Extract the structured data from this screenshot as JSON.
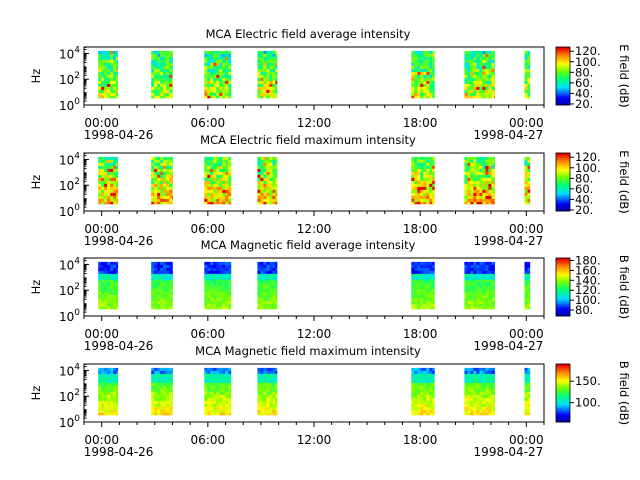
{
  "chart_data": [
    {
      "type": "heatmap",
      "title": "MCA  Electric field average intensity",
      "ylabel": "Hz",
      "yscale": "log",
      "ylim_exp": [
        0,
        4.5
      ],
      "yticks": [
        {
          "base": "10",
          "exp": "0"
        },
        {
          "base": "10",
          "exp": "2"
        },
        {
          "base": "10",
          "exp": "4"
        }
      ],
      "xlim_hours": [
        -1,
        25
      ],
      "xticks": [
        {
          "hour": 0,
          "label": "00:00"
        },
        {
          "hour": 6,
          "label": "06:00"
        },
        {
          "hour": 12,
          "label": "12:00"
        },
        {
          "hour": 18,
          "label": "18:00"
        },
        {
          "hour": 24,
          "label": "00:00"
        }
      ],
      "date_start": "1998-04-26",
      "date_end": "1998-04-27",
      "colorbar": {
        "label": "E field (dB)",
        "range": [
          18,
          128
        ],
        "ticks": [
          "20.",
          "40.",
          "60.",
          "80.",
          "100.",
          "120."
        ],
        "tick_values": [
          20,
          40,
          60,
          80,
          100,
          120
        ]
      },
      "data_segments_hours": [
        [
          -0.2,
          0.9
        ],
        [
          2.8,
          4.0
        ],
        [
          5.8,
          7.3
        ],
        [
          8.8,
          9.9
        ],
        [
          17.5,
          18.8
        ],
        [
          20.5,
          22.2
        ],
        [
          23.9,
          24.2
        ]
      ],
      "pattern": "e-avg"
    },
    {
      "type": "heatmap",
      "title": "MCA  Electric field maximum intensity",
      "ylabel": "Hz",
      "yscale": "log",
      "ylim_exp": [
        0,
        4.5
      ],
      "yticks": [
        {
          "base": "10",
          "exp": "0"
        },
        {
          "base": "10",
          "exp": "2"
        },
        {
          "base": "10",
          "exp": "4"
        }
      ],
      "xlim_hours": [
        -1,
        25
      ],
      "xticks": [
        {
          "hour": 0,
          "label": "00:00"
        },
        {
          "hour": 6,
          "label": "06:00"
        },
        {
          "hour": 12,
          "label": "12:00"
        },
        {
          "hour": 18,
          "label": "18:00"
        },
        {
          "hour": 24,
          "label": "00:00"
        }
      ],
      "date_start": "1998-04-26",
      "date_end": "1998-04-27",
      "colorbar": {
        "label": "E field (dB)",
        "range": [
          18,
          128
        ],
        "ticks": [
          "20.",
          "40.",
          "60.",
          "80.",
          "100.",
          "120."
        ],
        "tick_values": [
          20,
          40,
          60,
          80,
          100,
          120
        ]
      },
      "data_segments_hours": [
        [
          -0.2,
          0.9
        ],
        [
          2.8,
          4.0
        ],
        [
          5.8,
          7.3
        ],
        [
          8.8,
          9.9
        ],
        [
          17.5,
          18.8
        ],
        [
          20.5,
          22.2
        ],
        [
          23.9,
          24.2
        ]
      ],
      "pattern": "e-max"
    },
    {
      "type": "heatmap",
      "title": "MCA  Magnetic field average intensity",
      "ylabel": "Hz",
      "yscale": "log",
      "ylim_exp": [
        0,
        4.5
      ],
      "yticks": [
        {
          "base": "10",
          "exp": "0"
        },
        {
          "base": "10",
          "exp": "2"
        },
        {
          "base": "10",
          "exp": "4"
        }
      ],
      "xlim_hours": [
        -1,
        25
      ],
      "xticks": [
        {
          "hour": 0,
          "label": "00:00"
        },
        {
          "hour": 6,
          "label": "06:00"
        },
        {
          "hour": 12,
          "label": "12:00"
        },
        {
          "hour": 18,
          "label": "18:00"
        },
        {
          "hour": 24,
          "label": "00:00"
        }
      ],
      "date_start": "1998-04-26",
      "date_end": "1998-04-27",
      "colorbar": {
        "label": "B field (dB)",
        "range": [
          68,
          185
        ],
        "ticks": [
          "80.",
          "100.",
          "120.",
          "140.",
          "160.",
          "180."
        ],
        "tick_values": [
          80,
          100,
          120,
          140,
          160,
          180
        ]
      },
      "data_segments_hours": [
        [
          -0.2,
          0.9
        ],
        [
          2.8,
          4.0
        ],
        [
          5.8,
          7.3
        ],
        [
          8.8,
          9.9
        ],
        [
          17.5,
          18.8
        ],
        [
          20.5,
          22.2
        ],
        [
          23.9,
          24.2
        ]
      ],
      "pattern": "b-avg"
    },
    {
      "type": "heatmap",
      "title": "MCA  Magnetic field maximum intensity",
      "ylabel": "Hz",
      "yscale": "log",
      "ylim_exp": [
        0,
        4.5
      ],
      "yticks": [
        {
          "base": "10",
          "exp": "0"
        },
        {
          "base": "10",
          "exp": "2"
        },
        {
          "base": "10",
          "exp": "4"
        }
      ],
      "xlim_hours": [
        -1,
        25
      ],
      "xticks": [
        {
          "hour": 0,
          "label": "00:00"
        },
        {
          "hour": 6,
          "label": "06:00"
        },
        {
          "hour": 12,
          "label": "12:00"
        },
        {
          "hour": 18,
          "label": "18:00"
        },
        {
          "hour": 24,
          "label": "00:00"
        }
      ],
      "date_start": "1998-04-26",
      "date_end": "1998-04-27",
      "colorbar": {
        "label": "B field (dB)",
        "range": [
          55,
          190
        ],
        "ticks": [
          "100.",
          "150."
        ],
        "tick_values": [
          100,
          150
        ]
      },
      "data_segments_hours": [
        [
          -0.2,
          0.9
        ],
        [
          2.8,
          4.0
        ],
        [
          5.8,
          7.3
        ],
        [
          8.8,
          9.9
        ],
        [
          17.5,
          18.8
        ],
        [
          20.5,
          22.2
        ],
        [
          23.9,
          24.2
        ]
      ],
      "pattern": "b-max"
    }
  ]
}
